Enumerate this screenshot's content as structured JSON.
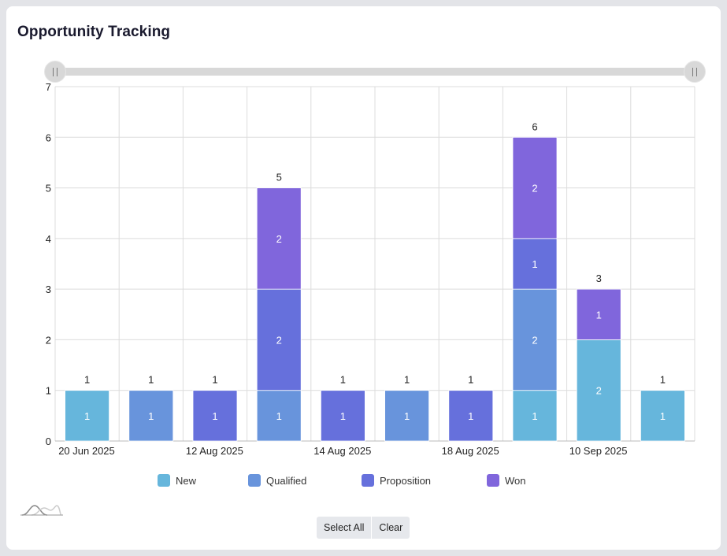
{
  "title": "Opportunity Tracking",
  "zoom_slider": {
    "start": 0,
    "end": 1
  },
  "chart_data": {
    "type": "bar",
    "stacked": true,
    "title": "Opportunity Tracking",
    "xlabel": "",
    "ylabel": "",
    "ylim": [
      0,
      7
    ],
    "yticks": [
      0,
      1,
      2,
      3,
      4,
      5,
      6,
      7
    ],
    "grid": true,
    "legend_position": "bottom",
    "categories": [
      "20 Jun 2025",
      "",
      "12 Aug 2025",
      "",
      "14 Aug 2025",
      "",
      "18 Aug 2025",
      "",
      "10 Sep 2025",
      ""
    ],
    "x_tick_labels": [
      "20 Jun 2025",
      "12 Aug 2025",
      "14 Aug 2025",
      "18 Aug 2025",
      "10 Sep 2025"
    ],
    "series": [
      {
        "name": "New",
        "color": "#66b6dc",
        "values": [
          1,
          0,
          0,
          0,
          0,
          0,
          0,
          1,
          2,
          1
        ]
      },
      {
        "name": "Qualified",
        "color": "#6894dc",
        "values": [
          0,
          1,
          0,
          1,
          0,
          1,
          0,
          2,
          0,
          0
        ]
      },
      {
        "name": "Proposition",
        "color": "#6670dc",
        "values": [
          0,
          0,
          1,
          2,
          1,
          0,
          1,
          1,
          0,
          0
        ]
      },
      {
        "name": "Won",
        "color": "#8066dc",
        "values": [
          0,
          0,
          0,
          2,
          0,
          0,
          0,
          2,
          1,
          0
        ]
      }
    ],
    "totals": [
      1,
      1,
      1,
      5,
      1,
      1,
      1,
      6,
      3,
      1
    ]
  },
  "buttons": {
    "select_all": "Select All",
    "clear": "Clear"
  }
}
